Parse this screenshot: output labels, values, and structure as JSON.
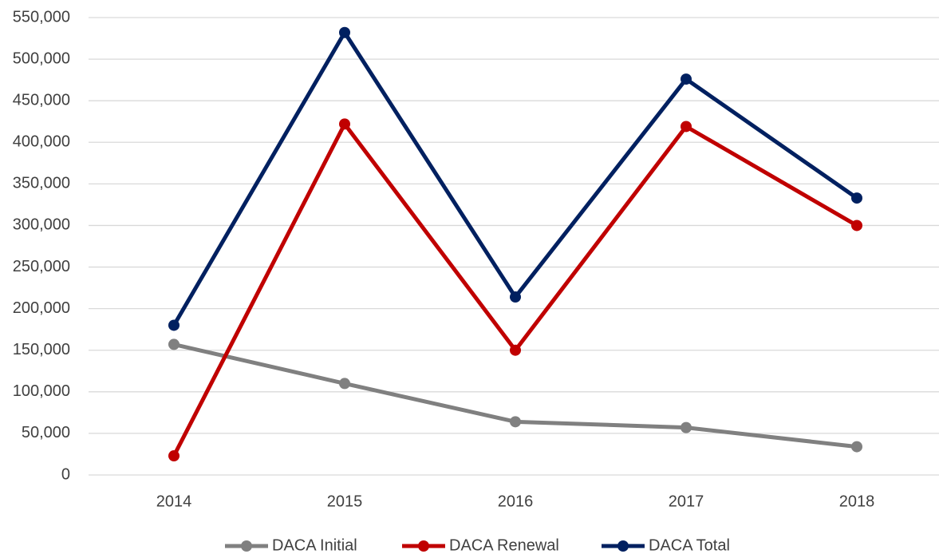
{
  "chart_data": {
    "type": "line",
    "categories": [
      "2014",
      "2015",
      "2016",
      "2017",
      "2018"
    ],
    "series": [
      {
        "name": "DACA Initial",
        "color": "#808080",
        "values": [
          157000,
          110000,
          64000,
          57000,
          34000
        ]
      },
      {
        "name": "DACA Renewal",
        "color": "#c00000",
        "values": [
          23000,
          422000,
          150000,
          419000,
          300000
        ]
      },
      {
        "name": "DACA Total",
        "color": "#002060",
        "values": [
          180000,
          532000,
          214000,
          476000,
          333000
        ]
      }
    ],
    "ylim": [
      0,
      550000
    ],
    "yticks": [
      0,
      {
        "value": 50000,
        "label": "50,000"
      },
      {
        "value": 100000,
        "label": "100,000"
      },
      {
        "value": 150000,
        "label": "150,000"
      },
      {
        "value": 200000,
        "label": "200,000"
      },
      {
        "value": 250000,
        "label": "250,000"
      },
      {
        "value": 300000,
        "label": "300,000"
      },
      {
        "value": 350000,
        "label": "350,000"
      },
      {
        "value": 400000,
        "label": "400,000"
      },
      {
        "value": 450000,
        "label": "450,000"
      },
      {
        "value": 500000,
        "label": "500,000"
      },
      {
        "value": 550000,
        "label": "550,000"
      }
    ],
    "grid": true,
    "legend": "bottom"
  }
}
